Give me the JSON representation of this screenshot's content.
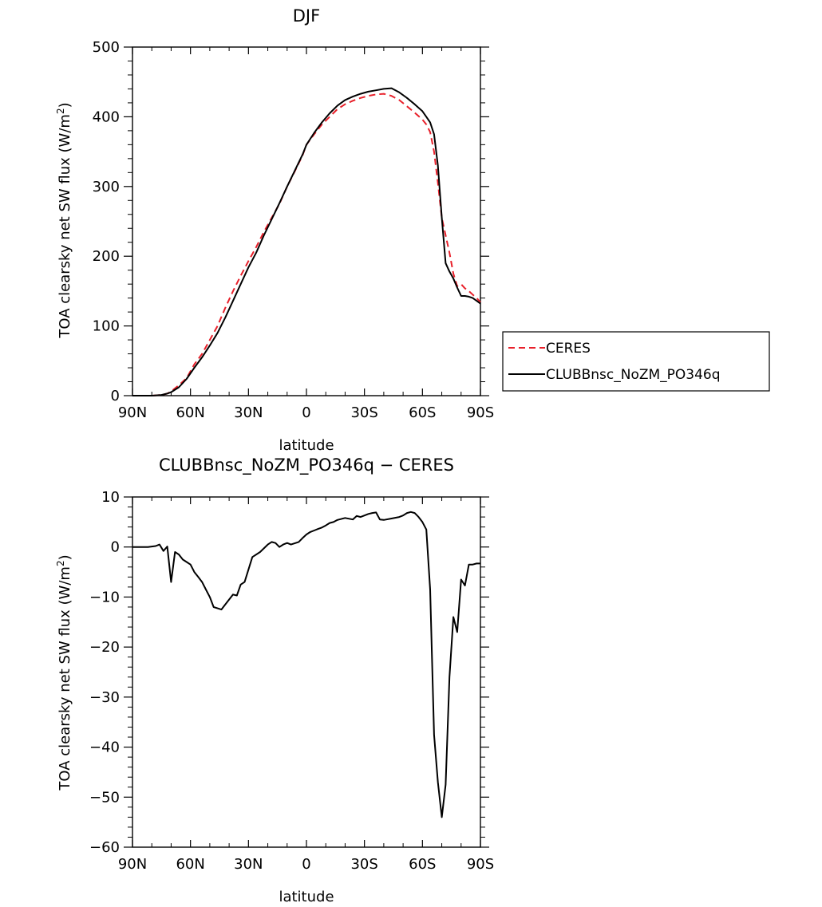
{
  "chart_data": [
    {
      "type": "line",
      "title": "DJF",
      "xlabel": "latitude",
      "ylabel": "TOA clearsky net SW flux (W/m²)",
      "ylabel_parts": {
        "main": "TOA clearsky net SW flux (W/m",
        "sup": "2",
        "close": ")"
      },
      "xlim": [
        90,
        -90
      ],
      "ylim": [
        0,
        500
      ],
      "xticks": [
        90,
        60,
        30,
        0,
        -30,
        -60,
        -90
      ],
      "xtick_labels": [
        "90N",
        "60N",
        "30N",
        "0",
        "30S",
        "60S",
        "90S"
      ],
      "yticks": [
        0,
        100,
        200,
        300,
        400,
        500
      ],
      "ytick_labels": [
        "0",
        "100",
        "200",
        "300",
        "400",
        "500"
      ],
      "grid": false,
      "legend_position": "right, outside plot",
      "series": [
        {
          "name": "CERES",
          "color": "#e8202a",
          "dash": "dashed",
          "x": [
            90,
            80,
            75,
            72,
            70,
            66,
            62,
            58,
            54,
            50,
            46,
            42,
            38,
            34,
            30,
            26,
            22,
            18,
            14,
            10,
            6,
            2,
            0,
            -4,
            -8,
            -12,
            -16,
            -20,
            -24,
            -28,
            -32,
            -36,
            -40,
            -44,
            -48,
            -52,
            -56,
            -60,
            -62,
            -64,
            -66,
            -68,
            -70,
            -72,
            -74,
            -76,
            -78,
            -80,
            -82,
            -84,
            -86,
            -88,
            -90
          ],
          "y": [
            0,
            0,
            1,
            3,
            6,
            15,
            25,
            45,
            60,
            80,
            100,
            126,
            150,
            172,
            193,
            213,
            235,
            255,
            275,
            300,
            322,
            345,
            360,
            375,
            389,
            400,
            411,
            418,
            423,
            427,
            430,
            432,
            433,
            430,
            424,
            415,
            406,
            396,
            389,
            378,
            350,
            305,
            255,
            230,
            205,
            175,
            157,
            160,
            154,
            150,
            145,
            140,
            134
          ]
        },
        {
          "name": "CLUBBnsc_NoZM_PO346q",
          "color": "#000000",
          "dash": "solid",
          "x": [
            90,
            80,
            75,
            72,
            70,
            66,
            62,
            58,
            54,
            50,
            46,
            42,
            38,
            34,
            30,
            26,
            22,
            18,
            14,
            10,
            6,
            2,
            0,
            -4,
            -8,
            -12,
            -16,
            -20,
            -24,
            -28,
            -32,
            -36,
            -40,
            -44,
            -48,
            -52,
            -56,
            -60,
            -62,
            -64,
            -66,
            -68,
            -70,
            -72,
            -74,
            -76,
            -78,
            -80,
            -82,
            -84,
            -86,
            -88,
            -90
          ],
          "y": [
            0,
            0,
            1,
            3,
            5,
            12,
            24,
            40,
            55,
            72,
            90,
            112,
            136,
            160,
            184,
            205,
            230,
            253,
            276,
            300,
            323,
            346,
            360,
            377,
            392,
            405,
            416,
            424,
            429,
            433,
            436,
            438,
            440,
            441,
            435,
            427,
            418,
            408,
            400,
            392,
            375,
            330,
            255,
            190,
            178,
            168,
            155,
            143,
            143,
            142,
            140,
            136,
            132
          ]
        }
      ]
    },
    {
      "type": "line",
      "title": "CLUBBnsc_NoZM_PO346q − CERES",
      "xlabel": "latitude",
      "ylabel": "TOA clearsky net SW flux (W/m²)",
      "ylabel_parts": {
        "main": "TOA clearsky net SW flux (W/m",
        "sup": "2",
        "close": ")"
      },
      "xlim": [
        90,
        -90
      ],
      "ylim": [
        -60,
        10
      ],
      "xticks": [
        90,
        60,
        30,
        0,
        -30,
        -60,
        -90
      ],
      "xtick_labels": [
        "90N",
        "60N",
        "30N",
        "0",
        "30S",
        "60S",
        "90S"
      ],
      "yticks": [
        -60,
        -50,
        -40,
        -30,
        -20,
        -10,
        0,
        10
      ],
      "ytick_labels": [
        "−60",
        "−50",
        "−40",
        "−30",
        "−20",
        "−10",
        "0",
        "10"
      ],
      "grid": false,
      "series": [
        {
          "color": "#000000",
          "dash": "solid",
          "x": [
            90,
            86,
            82,
            78,
            76,
            74,
            72,
            70,
            68,
            66,
            64,
            62,
            60,
            58,
            56,
            54,
            52,
            50,
            48,
            44,
            42,
            38,
            36,
            34,
            32,
            28,
            24,
            20,
            18,
            16,
            14,
            12,
            10,
            8,
            4,
            2,
            0,
            -2,
            -4,
            -6,
            -8,
            -10,
            -12,
            -14,
            -16,
            -20,
            -24,
            -26,
            -28,
            -30,
            -32,
            -34,
            -36,
            -38,
            -40,
            -44,
            -48,
            -50,
            -52,
            -54,
            -56,
            -58,
            -60,
            -62,
            -64,
            -66,
            -68,
            -70,
            -72,
            -74,
            -76,
            -78,
            -80,
            -82,
            -84,
            -86,
            -88,
            -90
          ],
          "y": [
            0,
            0,
            0,
            0.2,
            0.5,
            -0.8,
            0.1,
            -7,
            -1,
            -1.5,
            -2.5,
            -3,
            -3.5,
            -5,
            -6,
            -7,
            -8.5,
            -10,
            -12,
            -12.5,
            -11.5,
            -9.5,
            -9.7,
            -7.5,
            -7,
            -2,
            -1,
            0.5,
            1,
            0.8,
            0,
            0.5,
            0.8,
            0.5,
            1,
            1.8,
            2.5,
            3,
            3.3,
            3.6,
            3.9,
            4.3,
            4.8,
            5,
            5.4,
            5.8,
            5.5,
            6.2,
            6,
            6.3,
            6.6,
            6.8,
            6.9,
            5.5,
            5.4,
            5.7,
            6,
            6.3,
            6.8,
            7,
            6.8,
            6,
            5,
            3.5,
            -8.5,
            -37.5,
            -47,
            -54,
            -47.5,
            -26,
            -14,
            -17,
            -6.5,
            -7.7,
            -3.5,
            -3.5,
            -3.3,
            -3.3
          ]
        }
      ]
    }
  ]
}
